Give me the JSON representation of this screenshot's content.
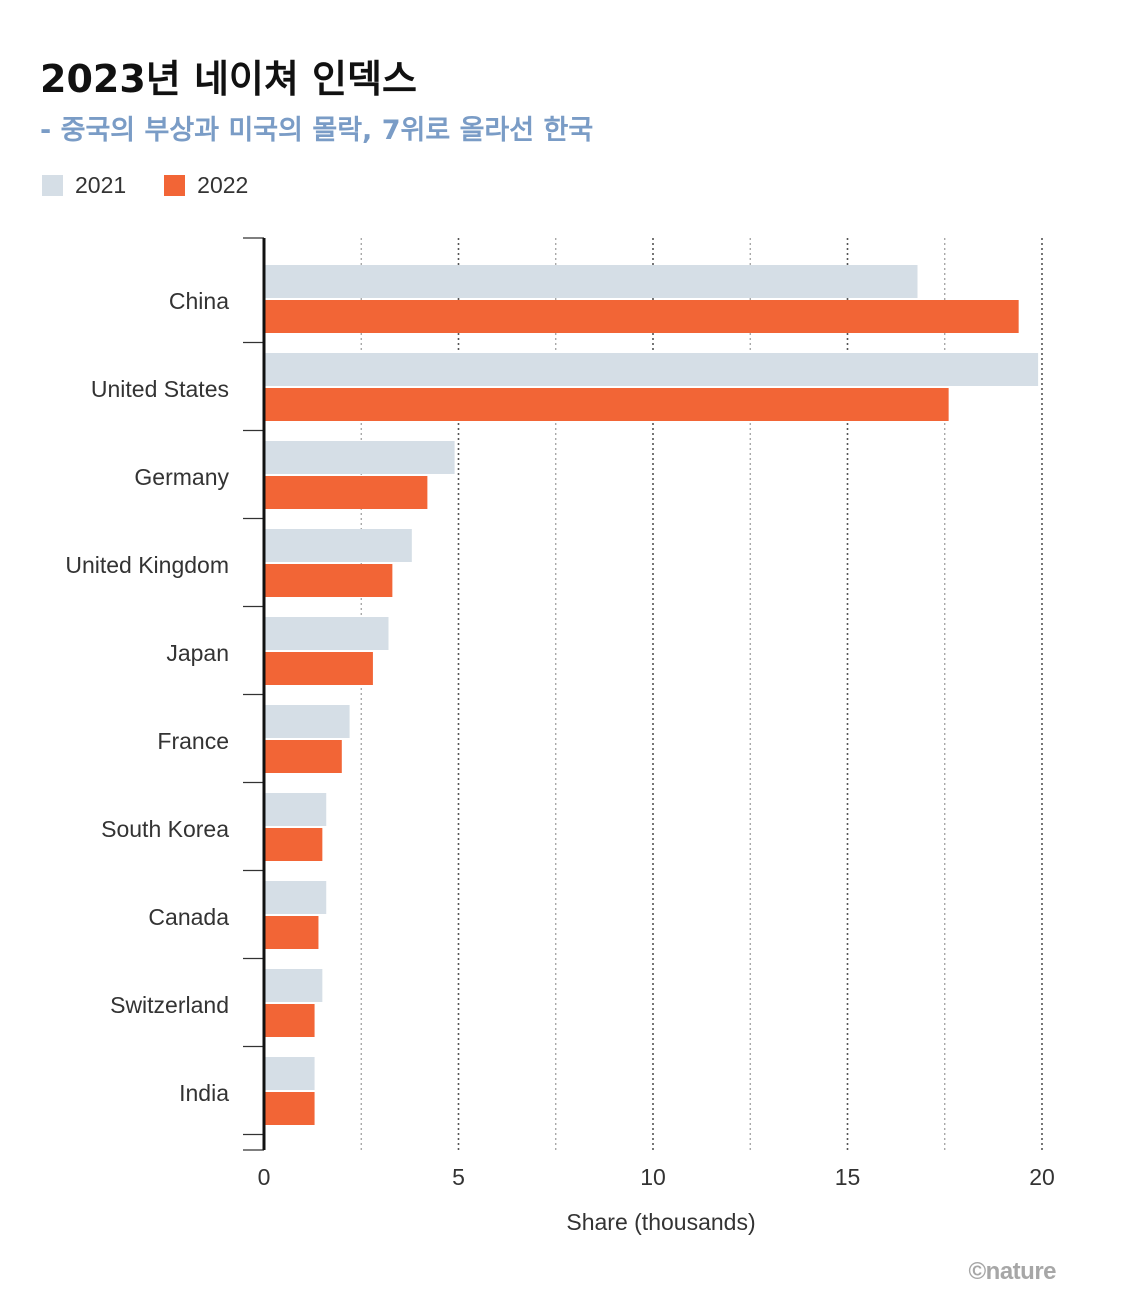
{
  "header": {
    "title": "2023년 네이쳐 인덱스",
    "subtitle": "- 중국의 부상과 미국의 몰락, 7위로 올라선 한국"
  },
  "legend": [
    {
      "label": "2021",
      "color": "#d5dee6"
    },
    {
      "label": "2022",
      "color": "#f26536"
    }
  ],
  "credit": "©nature",
  "chart_data": {
    "type": "bar",
    "orientation": "horizontal",
    "categories": [
      "China",
      "United States",
      "Germany",
      "United Kingdom",
      "Japan",
      "France",
      "South Korea",
      "Canada",
      "Switzerland",
      "India"
    ],
    "series": [
      {
        "name": "2021",
        "color": "#d5dee6",
        "values": [
          16.8,
          19.9,
          4.9,
          3.8,
          3.2,
          2.2,
          1.6,
          1.6,
          1.5,
          1.3
        ]
      },
      {
        "name": "2022",
        "color": "#f26536",
        "values": [
          19.4,
          17.6,
          4.2,
          3.3,
          2.8,
          2.0,
          1.5,
          1.4,
          1.3,
          1.3
        ]
      }
    ],
    "xlabel": "Share (thousands)",
    "xlim": [
      0,
      20
    ],
    "xticks": [
      0,
      5,
      10,
      15,
      20
    ],
    "grid": "vertical dotted",
    "legend_position": "top-left"
  }
}
